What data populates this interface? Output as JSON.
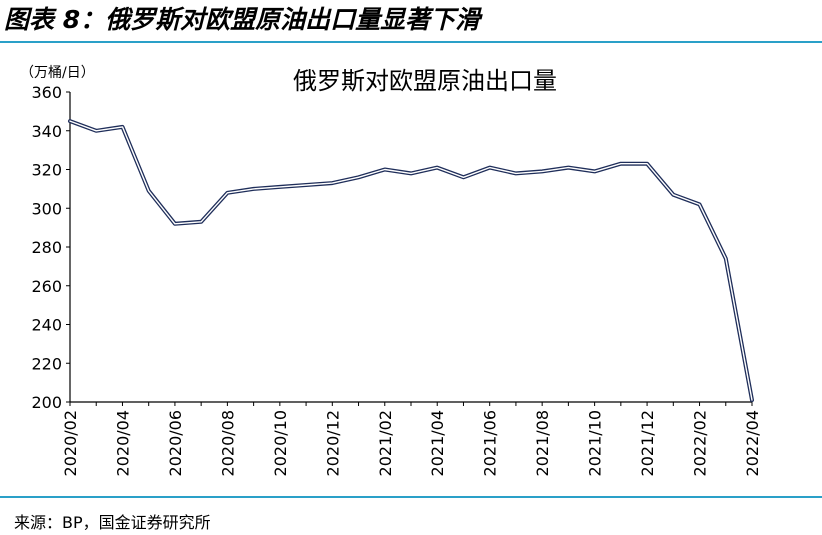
{
  "figure": {
    "caption": "图表 8：俄罗斯对欧盟原油出口量显著下滑",
    "source": "来源：BP，国金证券研究所"
  },
  "chart_data": {
    "type": "line",
    "title": "俄罗斯对欧盟原油出口量",
    "ylabel": "（万桶/日）",
    "xlabel": "",
    "ylim": [
      200,
      360
    ],
    "yticks": [
      200,
      220,
      240,
      260,
      280,
      300,
      320,
      340,
      360
    ],
    "xtick_labels": [
      "2020/02",
      "2020/04",
      "2020/06",
      "2020/08",
      "2020/10",
      "2020/12",
      "2021/02",
      "2021/04",
      "2021/06",
      "2021/08",
      "2021/10",
      "2021/12",
      "2022/02",
      "2022/04"
    ],
    "grid": false,
    "legend": "none",
    "x": [
      "2020/02",
      "2020/03",
      "2020/04",
      "2020/05",
      "2020/06",
      "2020/07",
      "2020/08",
      "2020/09",
      "2020/10",
      "2020/11",
      "2020/12",
      "2021/01",
      "2021/02",
      "2021/03",
      "2021/04",
      "2021/05",
      "2021/06",
      "2021/07",
      "2021/08",
      "2021/09",
      "2021/10",
      "2021/11",
      "2021/12",
      "2022/01",
      "2022/02",
      "2022/03",
      "2022/04"
    ],
    "series": [
      {
        "values": [
          345,
          340,
          342,
          309,
          292,
          293,
          308,
          310,
          311,
          312,
          313,
          316,
          320,
          318,
          321,
          316,
          321,
          318,
          319,
          321,
          319,
          323,
          323,
          307,
          302,
          274,
          201
        ]
      }
    ],
    "line_color": "#1f2e5a"
  }
}
